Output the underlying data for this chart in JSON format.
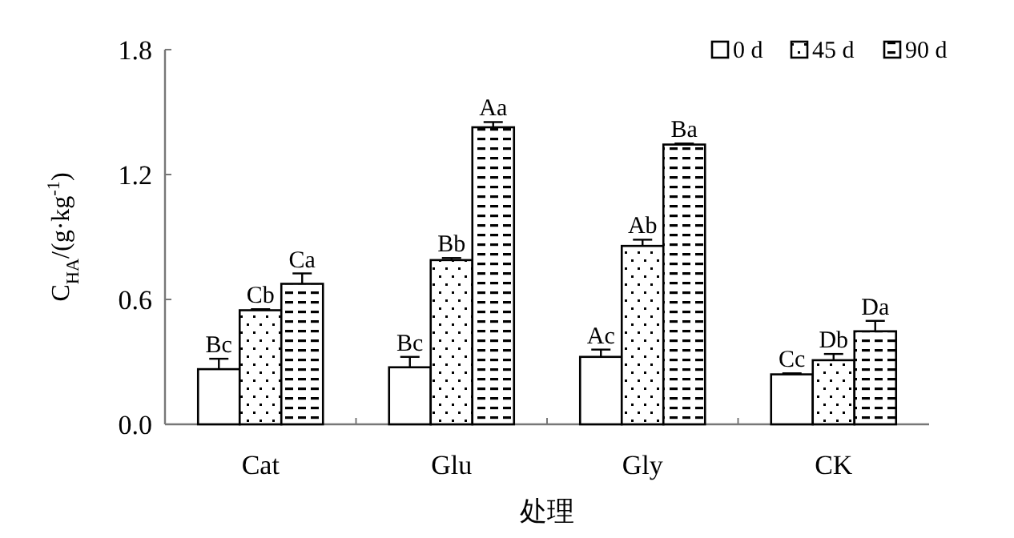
{
  "chart_data": {
    "type": "bar",
    "xlabel": "处理",
    "ylabel": "C$_{HA}$/(g·kg$^{-1}$)",
    "categories": [
      "Cat",
      "Glu",
      "Gly",
      "CK"
    ],
    "series": [
      {
        "name": "0 d",
        "color": "#000000",
        "values": [
          0.265,
          0.274,
          0.324,
          0.24
        ],
        "errors": [
          0.05,
          0.05,
          0.035,
          0.005
        ],
        "value_labels": [
          "Bc",
          "Bc",
          "Ac",
          "Cc"
        ]
      },
      {
        "name": "45 d",
        "color": "#000000",
        "values": [
          0.548,
          0.789,
          0.857,
          0.308
        ],
        "errors": [
          0.005,
          0.01,
          0.03,
          0.03
        ],
        "value_labels": [
          "Cb",
          "Bb",
          "Ab",
          "Db"
        ]
      },
      {
        "name": "90 d",
        "color": "#000000",
        "values": [
          0.675,
          1.427,
          1.344,
          0.447
        ],
        "errors": [
          0.05,
          0.025,
          0.005,
          0.05
        ],
        "value_labels": [
          "Ca",
          "Aa",
          "Ba",
          "Da"
        ]
      }
    ],
    "ylim": [
      0,
      1.8
    ],
    "yticks": [
      {
        "value": 0,
        "label": "0.0"
      },
      {
        "value": 0.6,
        "label": "0.6"
      },
      {
        "value": 1.2,
        "label": "1.2"
      },
      {
        "value": 1.8,
        "label": "1.8"
      }
    ],
    "legend": "top right"
  }
}
